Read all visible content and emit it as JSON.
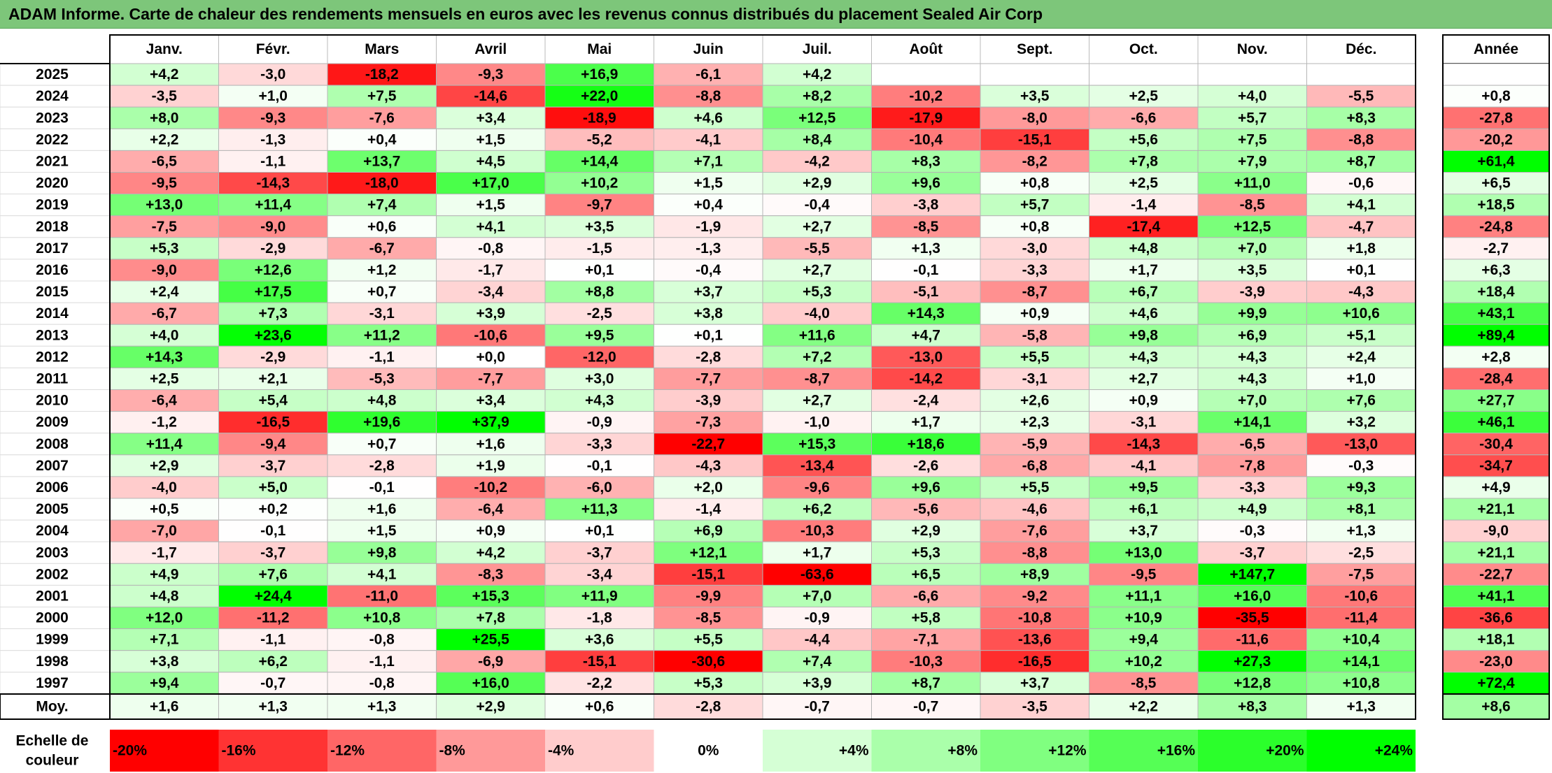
{
  "title": "ADAM Informe. Carte de chaleur des rendements mensuels en euros avec les revenus connus distribués du placement Sealed Air Corp",
  "chart_data": {
    "type": "heatmap",
    "title": "ADAM Informe. Carte de chaleur des rendements mensuels en euros avec les revenus connus distribués du placement Sealed Air Corp",
    "columns": [
      "Janv.",
      "Févr.",
      "Mars",
      "Avril",
      "Mai",
      "Juin",
      "Juil.",
      "Août",
      "Sept.",
      "Oct.",
      "Nov.",
      "Déc."
    ],
    "annual_header": "Année",
    "rows": [
      {
        "year": "2025",
        "values": [
          "+4,2",
          "-3,0",
          "-18,2",
          "-9,3",
          "+16,9",
          "-6,1",
          "+4,2",
          "",
          "",
          "",
          "",
          ""
        ],
        "annual": ""
      },
      {
        "year": "2024",
        "values": [
          "-3,5",
          "+1,0",
          "+7,5",
          "-14,6",
          "+22,0",
          "-8,8",
          "+8,2",
          "-10,2",
          "+3,5",
          "+2,5",
          "+4,0",
          "-5,5"
        ],
        "annual": "+0,8"
      },
      {
        "year": "2023",
        "values": [
          "+8,0",
          "-9,3",
          "-7,6",
          "+3,4",
          "-18,9",
          "+4,6",
          "+12,5",
          "-17,9",
          "-8,0",
          "-6,6",
          "+5,7",
          "+8,3"
        ],
        "annual": "-27,8"
      },
      {
        "year": "2022",
        "values": [
          "+2,2",
          "-1,3",
          "+0,4",
          "+1,5",
          "-5,2",
          "-4,1",
          "+8,4",
          "-10,4",
          "-15,1",
          "+5,6",
          "+7,5",
          "-8,8"
        ],
        "annual": "-20,2"
      },
      {
        "year": "2021",
        "values": [
          "-6,5",
          "-1,1",
          "+13,7",
          "+4,5",
          "+14,4",
          "+7,1",
          "-4,2",
          "+8,3",
          "-8,2",
          "+7,8",
          "+7,9",
          "+8,7"
        ],
        "annual": "+61,4"
      },
      {
        "year": "2020",
        "values": [
          "-9,5",
          "-14,3",
          "-18,0",
          "+17,0",
          "+10,2",
          "+1,5",
          "+2,9",
          "+9,6",
          "+0,8",
          "+2,5",
          "+11,0",
          "-0,6"
        ],
        "annual": "+6,5"
      },
      {
        "year": "2019",
        "values": [
          "+13,0",
          "+11,4",
          "+7,4",
          "+1,5",
          "-9,7",
          "+0,4",
          "-0,4",
          "-3,8",
          "+5,7",
          "-1,4",
          "-8,5",
          "+4,1"
        ],
        "annual": "+18,5"
      },
      {
        "year": "2018",
        "values": [
          "-7,5",
          "-9,0",
          "+0,6",
          "+4,1",
          "+3,5",
          "-1,9",
          "+2,7",
          "-8,5",
          "+0,8",
          "-17,4",
          "+12,5",
          "-4,7"
        ],
        "annual": "-24,8"
      },
      {
        "year": "2017",
        "values": [
          "+5,3",
          "-2,9",
          "-6,7",
          "-0,8",
          "-1,5",
          "-1,3",
          "-5,5",
          "+1,3",
          "-3,0",
          "+4,8",
          "+7,0",
          "+1,8"
        ],
        "annual": "-2,7"
      },
      {
        "year": "2016",
        "values": [
          "-9,0",
          "+12,6",
          "+1,2",
          "-1,7",
          "+0,1",
          "-0,4",
          "+2,7",
          "-0,1",
          "-3,3",
          "+1,7",
          "+3,5",
          "+0,1"
        ],
        "annual": "+6,3"
      },
      {
        "year": "2015",
        "values": [
          "+2,4",
          "+17,5",
          "+0,7",
          "-3,4",
          "+8,8",
          "+3,7",
          "+5,3",
          "-5,1",
          "-8,7",
          "+6,7",
          "-3,9",
          "-4,3"
        ],
        "annual": "+18,4"
      },
      {
        "year": "2014",
        "values": [
          "-6,7",
          "+7,3",
          "-3,1",
          "+3,9",
          "-2,5",
          "+3,8",
          "-4,0",
          "+14,3",
          "+0,9",
          "+4,6",
          "+9,9",
          "+10,6"
        ],
        "annual": "+43,1"
      },
      {
        "year": "2013",
        "values": [
          "+4,0",
          "+23,6",
          "+11,2",
          "-10,6",
          "+9,5",
          "+0,1",
          "+11,6",
          "+4,7",
          "-5,8",
          "+9,8",
          "+6,9",
          "+5,1"
        ],
        "annual": "+89,4"
      },
      {
        "year": "2012",
        "values": [
          "+14,3",
          "-2,9",
          "-1,1",
          "+0,0",
          "-12,0",
          "-2,8",
          "+7,2",
          "-13,0",
          "+5,5",
          "+4,3",
          "+4,3",
          "+2,4"
        ],
        "annual": "+2,8"
      },
      {
        "year": "2011",
        "values": [
          "+2,5",
          "+2,1",
          "-5,3",
          "-7,7",
          "+3,0",
          "-7,7",
          "-8,7",
          "-14,2",
          "-3,1",
          "+2,7",
          "+4,3",
          "+1,0"
        ],
        "annual": "-28,4"
      },
      {
        "year": "2010",
        "values": [
          "-6,4",
          "+5,4",
          "+4,8",
          "+3,4",
          "+4,3",
          "-3,9",
          "+2,7",
          "-2,4",
          "+2,6",
          "+0,9",
          "+7,0",
          "+7,6"
        ],
        "annual": "+27,7"
      },
      {
        "year": "2009",
        "values": [
          "-1,2",
          "-16,5",
          "+19,6",
          "+37,9",
          "-0,9",
          "-7,3",
          "-1,0",
          "+1,7",
          "+2,3",
          "-3,1",
          "+14,1",
          "+3,2"
        ],
        "annual": "+46,1"
      },
      {
        "year": "2008",
        "values": [
          "+11,4",
          "-9,4",
          "+0,7",
          "+1,6",
          "-3,3",
          "-22,7",
          "+15,3",
          "+18,6",
          "-5,9",
          "-14,3",
          "-6,5",
          "-13,0"
        ],
        "annual": "-30,4"
      },
      {
        "year": "2007",
        "values": [
          "+2,9",
          "-3,7",
          "-2,8",
          "+1,9",
          "-0,1",
          "-4,3",
          "-13,4",
          "-2,6",
          "-6,8",
          "-4,1",
          "-7,8",
          "-0,3"
        ],
        "annual": "-34,7"
      },
      {
        "year": "2006",
        "values": [
          "-4,0",
          "+5,0",
          "-0,1",
          "-10,2",
          "-6,0",
          "+2,0",
          "-9,6",
          "+9,6",
          "+5,5",
          "+9,5",
          "-3,3",
          "+9,3"
        ],
        "annual": "+4,9"
      },
      {
        "year": "2005",
        "values": [
          "+0,5",
          "+0,2",
          "+1,6",
          "-6,4",
          "+11,3",
          "-1,4",
          "+6,2",
          "-5,6",
          "-4,6",
          "+6,1",
          "+4,9",
          "+8,1"
        ],
        "annual": "+21,1"
      },
      {
        "year": "2004",
        "values": [
          "-7,0",
          "-0,1",
          "+1,5",
          "+0,9",
          "+0,1",
          "+6,9",
          "-10,3",
          "+2,9",
          "-7,6",
          "+3,7",
          "-0,3",
          "+1,3"
        ],
        "annual": "-9,0"
      },
      {
        "year": "2003",
        "values": [
          "-1,7",
          "-3,7",
          "+9,8",
          "+4,2",
          "-3,7",
          "+12,1",
          "+1,7",
          "+5,3",
          "-8,8",
          "+13,0",
          "-3,7",
          "-2,5"
        ],
        "annual": "+21,1"
      },
      {
        "year": "2002",
        "values": [
          "+4,9",
          "+7,6",
          "+4,1",
          "-8,3",
          "-3,4",
          "-15,1",
          "-63,6",
          "+6,5",
          "+8,9",
          "-9,5",
          "+147,7",
          "-7,5"
        ],
        "annual": "-22,7"
      },
      {
        "year": "2001",
        "values": [
          "+4,8",
          "+24,4",
          "-11,0",
          "+15,3",
          "+11,9",
          "-9,9",
          "+7,0",
          "-6,6",
          "-9,2",
          "+11,1",
          "+16,0",
          "-10,6"
        ],
        "annual": "+41,1"
      },
      {
        "year": "2000",
        "values": [
          "+12,0",
          "-11,2",
          "+10,8",
          "+7,8",
          "-1,8",
          "-8,5",
          "-0,9",
          "+5,8",
          "-10,8",
          "+10,9",
          "-35,5",
          "-11,4"
        ],
        "annual": "-36,6"
      },
      {
        "year": "1999",
        "values": [
          "+7,1",
          "-1,1",
          "-0,8",
          "+25,5",
          "+3,6",
          "+5,5",
          "-4,4",
          "-7,1",
          "-13,6",
          "+9,4",
          "-11,6",
          "+10,4"
        ],
        "annual": "+18,1"
      },
      {
        "year": "1998",
        "values": [
          "+3,8",
          "+6,2",
          "-1,1",
          "-6,9",
          "-15,1",
          "-30,6",
          "+7,4",
          "-10,3",
          "-16,5",
          "+10,2",
          "+27,3",
          "+14,1"
        ],
        "annual": "-23,0"
      },
      {
        "year": "1997",
        "values": [
          "+9,4",
          "-0,7",
          "-0,8",
          "+16,0",
          "-2,2",
          "+5,3",
          "+3,9",
          "+8,7",
          "+3,7",
          "-8,5",
          "+12,8",
          "+10,8"
        ],
        "annual": "+72,4"
      }
    ],
    "average": {
      "label": "Moy.",
      "values": [
        "+1,6",
        "+1,3",
        "+1,3",
        "+2,9",
        "+0,6",
        "-2,8",
        "-0,7",
        "-0,7",
        "-3,5",
        "+2,2",
        "+8,3",
        "+1,3"
      ],
      "annual": "+8,6"
    },
    "color_scale": {
      "label_line1": "Echelle de",
      "label_line2": "couleur",
      "steps": [
        {
          "label": "-20%",
          "value": -20
        },
        {
          "label": "-16%",
          "value": -16
        },
        {
          "label": "-12%",
          "value": -12
        },
        {
          "label": "-8%",
          "value": -8
        },
        {
          "label": "-4%",
          "value": -4
        },
        {
          "label": "0%",
          "value": 0
        },
        {
          "label": "+4%",
          "value": 4
        },
        {
          "label": "+8%",
          "value": 8
        },
        {
          "label": "+12%",
          "value": 12
        },
        {
          "label": "+16%",
          "value": 16
        },
        {
          "label": "+20%",
          "value": 20
        },
        {
          "label": "+24%",
          "value": 24
        }
      ]
    },
    "colors": {
      "negative": "#ff0000",
      "neutral": "#ffffff",
      "positive": "#00ff00",
      "title_bar": "#7dc67a"
    }
  }
}
